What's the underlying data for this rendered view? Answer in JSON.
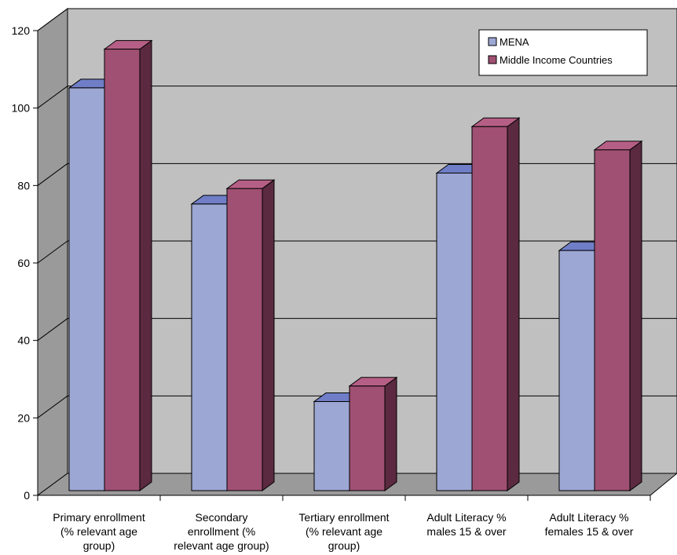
{
  "chart_data": {
    "type": "bar",
    "categories": [
      [
        "Primary enrollment",
        "(% relevant age",
        "group)"
      ],
      [
        "Secondary",
        "enrollment  (%",
        "relevant age group)"
      ],
      [
        "Tertiary enrollment",
        "(% relevant age",
        "group)"
      ],
      [
        "Adult Literacy %",
        "males 15 & over"
      ],
      [
        "Adult Literacy %",
        "females 15 & over"
      ]
    ],
    "series": [
      {
        "name": "MENA",
        "values": [
          104,
          74,
          23,
          82,
          62
        ]
      },
      {
        "name": "Middle Income Countries",
        "values": [
          114,
          78,
          27,
          94,
          88
        ]
      }
    ],
    "ylim": [
      0,
      120
    ],
    "yticks": [
      "0",
      "20",
      "40",
      "60",
      "80",
      "100",
      "120"
    ],
    "grid": true,
    "legend_position": "top-right",
    "colors": {
      "series_front": [
        "#9da7d4",
        "#a05073"
      ],
      "series_top": [
        "#6f7ec6",
        "#b65f86"
      ],
      "series_side": [
        "#5a6bb0",
        "#5b2a40"
      ],
      "back_wall": "#c0c0c0",
      "side_wall": "#9a9a9a",
      "floor": "#9a9a9a"
    }
  }
}
